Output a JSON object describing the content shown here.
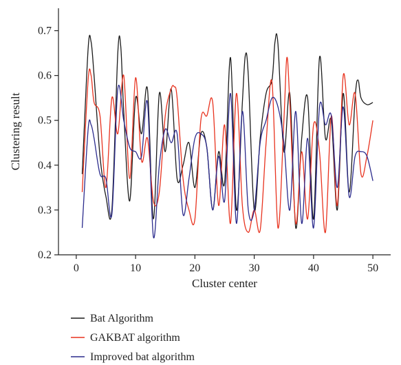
{
  "chart_data": {
    "type": "line",
    "xlabel": "Cluster center",
    "ylabel": "Clustering result",
    "xlim": [
      -3,
      53
    ],
    "ylim": [
      0.2,
      0.75
    ],
    "xticks": [
      0,
      10,
      20,
      30,
      40,
      50
    ],
    "yticks": [
      0.2,
      0.3,
      0.4,
      0.5,
      0.6,
      0.7
    ],
    "xtick_labels": [
      "0",
      "10",
      "20",
      "30",
      "40",
      "50"
    ],
    "ytick_labels": [
      "0.2",
      "0.3",
      "0.4",
      "0.5",
      "0.6",
      "0.7"
    ],
    "grid": false,
    "legend_position": "bottom-left, below plot",
    "series": [
      {
        "name": "Bat Algorithm",
        "color": "#1a1a1a",
        "points": [
          [
            1,
            0.38
          ],
          [
            2,
            0.66
          ],
          [
            2.5,
            0.675
          ],
          [
            3,
            0.6
          ],
          [
            4,
            0.42
          ],
          [
            5,
            0.33
          ],
          [
            6,
            0.3
          ],
          [
            7,
            0.65
          ],
          [
            7.5,
            0.665
          ],
          [
            8,
            0.52
          ],
          [
            9,
            0.32
          ],
          [
            10,
            0.55
          ],
          [
            11,
            0.47
          ],
          [
            12,
            0.57
          ],
          [
            13,
            0.28
          ],
          [
            14,
            0.56
          ],
          [
            15,
            0.43
          ],
          [
            16,
            0.57
          ],
          [
            17,
            0.37
          ],
          [
            18,
            0.4
          ],
          [
            19,
            0.45
          ],
          [
            20,
            0.35
          ],
          [
            21,
            0.47
          ],
          [
            22,
            0.44
          ],
          [
            23,
            0.3
          ],
          [
            24,
            0.43
          ],
          [
            25,
            0.36
          ],
          [
            26,
            0.64
          ],
          [
            27,
            0.3
          ],
          [
            28,
            0.54
          ],
          [
            28.5,
            0.645
          ],
          [
            29,
            0.6
          ],
          [
            30,
            0.3
          ],
          [
            31,
            0.46
          ],
          [
            32,
            0.56
          ],
          [
            33,
            0.59
          ],
          [
            33.5,
            0.675
          ],
          [
            34,
            0.67
          ],
          [
            35,
            0.43
          ],
          [
            36,
            0.56
          ],
          [
            37,
            0.26
          ],
          [
            38,
            0.46
          ],
          [
            39,
            0.55
          ],
          [
            40,
            0.28
          ],
          [
            41,
            0.64
          ],
          [
            42,
            0.46
          ],
          [
            43,
            0.5
          ],
          [
            44,
            0.3
          ],
          [
            45,
            0.56
          ],
          [
            46,
            0.34
          ],
          [
            47,
            0.55
          ],
          [
            47.5,
            0.59
          ],
          [
            48,
            0.55
          ],
          [
            49,
            0.535
          ],
          [
            50,
            0.54
          ]
        ]
      },
      {
        "name": "GAKBAT algorithm",
        "color": "#e8321e",
        "points": [
          [
            1,
            0.34
          ],
          [
            2,
            0.59
          ],
          [
            2.5,
            0.6
          ],
          [
            3,
            0.54
          ],
          [
            4,
            0.51
          ],
          [
            5,
            0.35
          ],
          [
            6,
            0.55
          ],
          [
            7,
            0.47
          ],
          [
            8,
            0.6
          ],
          [
            9,
            0.37
          ],
          [
            10,
            0.595
          ],
          [
            11,
            0.41
          ],
          [
            12,
            0.46
          ],
          [
            13,
            0.32
          ],
          [
            14,
            0.34
          ],
          [
            15,
            0.51
          ],
          [
            16,
            0.57
          ],
          [
            16.5,
            0.575
          ],
          [
            17,
            0.55
          ],
          [
            18,
            0.37
          ],
          [
            19,
            0.3
          ],
          [
            20,
            0.28
          ],
          [
            21,
            0.5
          ],
          [
            22,
            0.51
          ],
          [
            23,
            0.54
          ],
          [
            24,
            0.31
          ],
          [
            25,
            0.49
          ],
          [
            26,
            0.27
          ],
          [
            27,
            0.56
          ],
          [
            28,
            0.31
          ],
          [
            29,
            0.25
          ],
          [
            30,
            0.3
          ],
          [
            31,
            0.255
          ],
          [
            32,
            0.45
          ],
          [
            33,
            0.585
          ],
          [
            34,
            0.26
          ],
          [
            35,
            0.5
          ],
          [
            35.5,
            0.64
          ],
          [
            36,
            0.54
          ],
          [
            37,
            0.27
          ],
          [
            38,
            0.43
          ],
          [
            39,
            0.28
          ],
          [
            40,
            0.49
          ],
          [
            41,
            0.43
          ],
          [
            42,
            0.25
          ],
          [
            43,
            0.51
          ],
          [
            44,
            0.31
          ],
          [
            45,
            0.6
          ],
          [
            46,
            0.49
          ],
          [
            47,
            0.56
          ],
          [
            48,
            0.38
          ],
          [
            49,
            0.42
          ],
          [
            50,
            0.5
          ]
        ]
      },
      {
        "name": "Improved bat algorithm",
        "color": "#2a2a8c",
        "points": [
          [
            1,
            0.26
          ],
          [
            2,
            0.48
          ],
          [
            2.5,
            0.49
          ],
          [
            3,
            0.46
          ],
          [
            4,
            0.38
          ],
          [
            5,
            0.37
          ],
          [
            6,
            0.29
          ],
          [
            7,
            0.57
          ],
          [
            8,
            0.5
          ],
          [
            9,
            0.44
          ],
          [
            10,
            0.43
          ],
          [
            11,
            0.42
          ],
          [
            12,
            0.54
          ],
          [
            13,
            0.24
          ],
          [
            14,
            0.4
          ],
          [
            15,
            0.48
          ],
          [
            16,
            0.45
          ],
          [
            17,
            0.47
          ],
          [
            18,
            0.29
          ],
          [
            19,
            0.37
          ],
          [
            20,
            0.46
          ],
          [
            21,
            0.47
          ],
          [
            22,
            0.44
          ],
          [
            23,
            0.3
          ],
          [
            24,
            0.42
          ],
          [
            25,
            0.32
          ],
          [
            26,
            0.56
          ],
          [
            27,
            0.27
          ],
          [
            28,
            0.52
          ],
          [
            29,
            0.3
          ],
          [
            30,
            0.3
          ],
          [
            31,
            0.45
          ],
          [
            32,
            0.5
          ],
          [
            33,
            0.55
          ],
          [
            34,
            0.53
          ],
          [
            35,
            0.45
          ],
          [
            36,
            0.3
          ],
          [
            37,
            0.52
          ],
          [
            38,
            0.27
          ],
          [
            39,
            0.46
          ],
          [
            40,
            0.26
          ],
          [
            41,
            0.53
          ],
          [
            42,
            0.49
          ],
          [
            43,
            0.51
          ],
          [
            44,
            0.35
          ],
          [
            45,
            0.53
          ],
          [
            46,
            0.33
          ],
          [
            47,
            0.42
          ],
          [
            48,
            0.43
          ],
          [
            49,
            0.42
          ],
          [
            50,
            0.365
          ]
        ]
      }
    ]
  }
}
